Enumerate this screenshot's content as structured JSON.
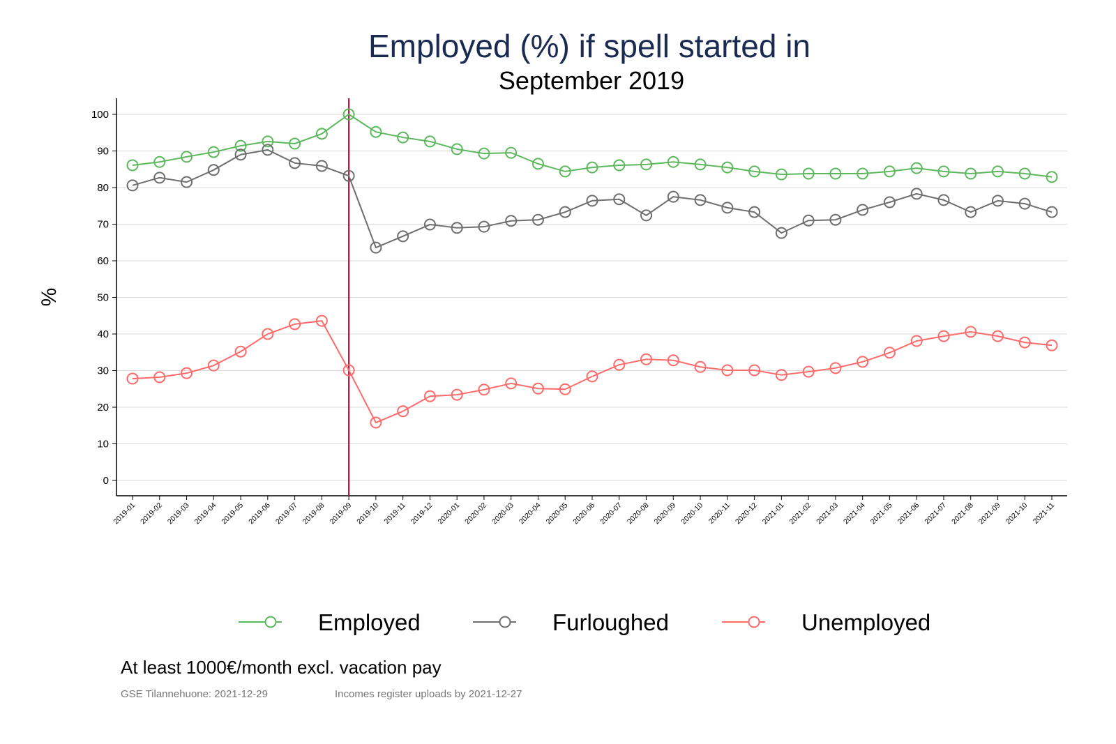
{
  "chart_data": {
    "type": "line",
    "title": "Employed (%) if spell started in",
    "subtitle": "September 2019",
    "xlabel": "",
    "ylabel": "%",
    "ylim": [
      0,
      100
    ],
    "yticks": [
      0,
      10,
      20,
      30,
      40,
      50,
      60,
      70,
      80,
      90,
      100
    ],
    "grid": true,
    "legend_position": "bottom",
    "reference_line": "2019-09",
    "x": [
      "2019-01",
      "2019-02",
      "2019-03",
      "2019-04",
      "2019-05",
      "2019-06",
      "2019-07",
      "2019-08",
      "2019-09",
      "2019-10",
      "2019-11",
      "2019-12",
      "2020-01",
      "2020-02",
      "2020-03",
      "2020-04",
      "2020-05",
      "2020-06",
      "2020-07",
      "2020-08",
      "2020-09",
      "2020-10",
      "2020-11",
      "2020-12",
      "2021-01",
      "2021-02",
      "2021-03",
      "2021-04",
      "2021-05",
      "2021-06",
      "2021-07",
      "2021-08",
      "2021-09",
      "2021-10",
      "2021-11"
    ],
    "series": [
      {
        "name": "Employed",
        "color": "#5cb85c",
        "values": [
          86.1,
          87.0,
          88.4,
          89.7,
          91.4,
          92.6,
          92.0,
          94.7,
          100,
          95.2,
          93.7,
          92.6,
          90.5,
          89.3,
          89.5,
          86.5,
          84.4,
          85.5,
          86.1,
          86.3,
          87.0,
          86.3,
          85.5,
          84.4,
          83.6,
          83.8,
          83.8,
          83.8,
          84.4,
          85.3,
          84.4,
          83.8,
          84.4,
          83.8,
          82.9
        ]
      },
      {
        "name": "Furloughed",
        "color": "#6e6e6e",
        "values": [
          80.6,
          82.7,
          81.5,
          84.8,
          89.0,
          90.3,
          86.7,
          85.9,
          83.2,
          63.6,
          66.7,
          69.9,
          69.0,
          69.3,
          70.9,
          71.2,
          73.3,
          76.4,
          76.8,
          72.4,
          77.5,
          76.6,
          74.5,
          73.3,
          67.6,
          71.0,
          71.2,
          73.9,
          76.0,
          78.3,
          76.6,
          73.3,
          76.4,
          75.6,
          73.3
        ]
      },
      {
        "name": "Unemployed",
        "color": "#ff6a6a",
        "values": [
          27.8,
          28.2,
          29.3,
          31.4,
          35.2,
          40.0,
          42.7,
          43.6,
          30.1,
          15.8,
          18.9,
          23.0,
          23.4,
          24.8,
          26.5,
          25.1,
          24.9,
          28.4,
          31.6,
          33.1,
          32.8,
          31.0,
          30.1,
          30.1,
          28.8,
          29.7,
          30.7,
          32.4,
          34.9,
          38.1,
          39.4,
          40.6,
          39.4,
          37.7,
          36.9
        ]
      }
    ],
    "reference_line_color": "#b3002d",
    "note": "At least 1000€/month excl. vacation pay",
    "source_left": "GSE Tilannehuone: 2021-12-29",
    "source_right": "Incomes register uploads by 2021-12-27"
  }
}
